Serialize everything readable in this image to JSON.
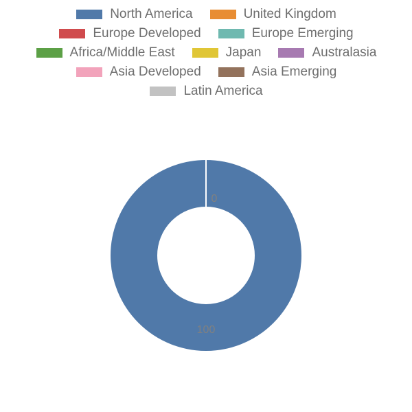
{
  "chart": {
    "type": "donut",
    "background_color": "#ffffff",
    "legend_font_size": 19,
    "legend_text_color": "#6e6e6e",
    "label_font_size": 16,
    "label_color": "#808080",
    "outer_radius": 140,
    "inner_radius": 70,
    "stroke_color": "#ffffff",
    "stroke_width": 2,
    "series": [
      {
        "label": "North America",
        "value": 100,
        "color": "#5079a9"
      },
      {
        "label": "United Kingdom",
        "value": 0,
        "color": "#e88d33"
      },
      {
        "label": "Europe Developed",
        "value": 0,
        "color": "#d04b4d"
      },
      {
        "label": "Europe Emerging",
        "value": 0,
        "color": "#6fb9b0"
      },
      {
        "label": "Africa/Middle East",
        "value": 0,
        "color": "#5ca046"
      },
      {
        "label": "Japan",
        "value": 0,
        "color": "#e0c636"
      },
      {
        "label": "Australasia",
        "value": 0,
        "color": "#a77ab1"
      },
      {
        "label": "Asia Developed",
        "value": 0,
        "color": "#f2a3bb"
      },
      {
        "label": "Asia Emerging",
        "value": 0,
        "color": "#93725c"
      },
      {
        "label": "Latin America",
        "value": 0,
        "color": "#c2c2c2"
      }
    ],
    "labels_shown": [
      {
        "text": "0",
        "for_index": 1
      },
      {
        "text": "100",
        "for_index": 0
      }
    ]
  }
}
